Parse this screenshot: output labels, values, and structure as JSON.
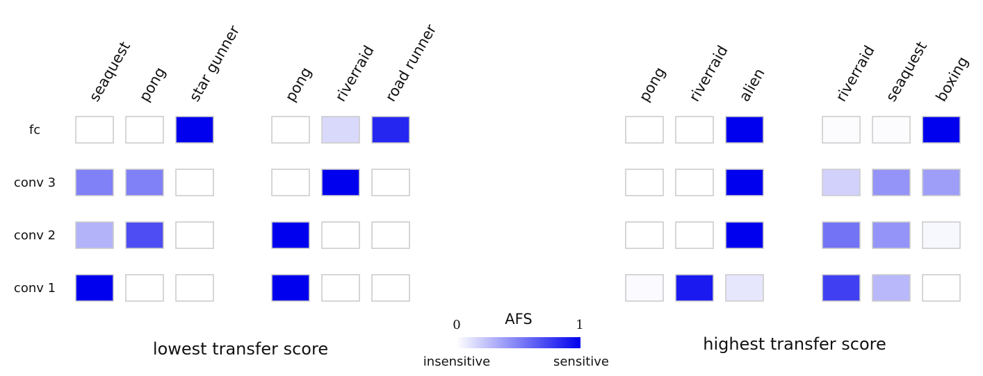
{
  "colors": {
    "high": "#0000ee",
    "low": "#ffffff",
    "cell_border": "#cccccc"
  },
  "chart_data": {
    "type": "heatmap",
    "rows": [
      "fc",
      "conv 3",
      "conv 2",
      "conv 1"
    ],
    "groups": [
      {
        "columns": [
          "seaquest",
          "pong",
          "star gunner"
        ],
        "values": [
          [
            0,
            0,
            1
          ],
          [
            0.5,
            0.5,
            0
          ],
          [
            0.3,
            0.7,
            0
          ],
          [
            1,
            0,
            0
          ]
        ]
      },
      {
        "columns": [
          "pong",
          "riverraid",
          "road runner"
        ],
        "values": [
          [
            0,
            0.15,
            0.85
          ],
          [
            0,
            1,
            0
          ],
          [
            1,
            0,
            0
          ],
          [
            1,
            0,
            0
          ]
        ]
      },
      {
        "columns": [
          "pong",
          "riverraid",
          "alien"
        ],
        "values": [
          [
            0,
            0,
            1
          ],
          [
            0,
            0,
            1
          ],
          [
            0,
            0,
            1
          ],
          [
            0.02,
            0.9,
            0.1
          ]
        ]
      },
      {
        "columns": [
          "riverraid",
          "seaquest",
          "boxing"
        ],
        "values": [
          [
            0.01,
            0.01,
            1
          ],
          [
            0.18,
            0.42,
            0.38
          ],
          [
            0.55,
            0.42,
            0.03
          ],
          [
            0.75,
            0.28,
            0
          ]
        ]
      }
    ],
    "section_labels": [
      "lowest transfer score",
      "highest transfer score"
    ],
    "colorbar": {
      "title": "AFS",
      "min_label": "0",
      "max_label": "1",
      "low_label": "insensitive",
      "high_label": "sensitive",
      "range": [
        0,
        1
      ]
    }
  }
}
